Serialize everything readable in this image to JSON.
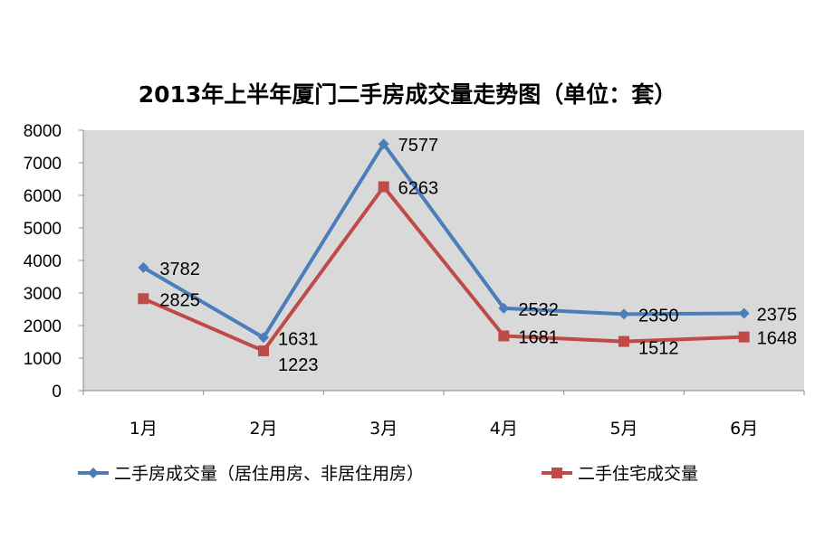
{
  "chart_data": {
    "type": "line",
    "title": "2013年上半年厦门二手房成交量走势图（单位：套）",
    "xlabel": "",
    "ylabel": "",
    "categories": [
      "1月",
      "2月",
      "3月",
      "4月",
      "5月",
      "6月"
    ],
    "ylim": [
      0,
      8000
    ],
    "yticks": [
      0,
      1000,
      2000,
      3000,
      4000,
      5000,
      6000,
      7000,
      8000
    ],
    "grid": false,
    "plot_background": "#d9d9d9",
    "legend_position": "bottom",
    "series": [
      {
        "name": "二手房成交量（居住用房、非居住用房）",
        "color": "#4a7ebb",
        "marker": "diamond",
        "values": [
          3782,
          1631,
          7577,
          2532,
          2350,
          2375
        ],
        "labels": [
          "3782",
          "1631",
          "7577",
          "2532",
          "2350",
          "2375"
        ]
      },
      {
        "name": "二手住宅成交量",
        "color": "#be4b48",
        "marker": "square",
        "values": [
          2825,
          1223,
          6263,
          1681,
          1512,
          1648
        ],
        "labels": [
          "2825",
          "1223",
          "6263",
          "1681",
          "1512",
          "1648"
        ]
      }
    ]
  }
}
